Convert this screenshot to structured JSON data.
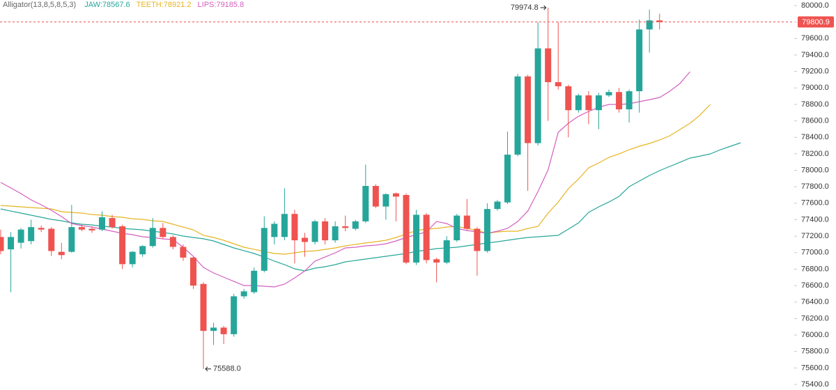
{
  "chart_data": {
    "type": "candlestick",
    "title": "Alligator(13,8,5,8,5,3)",
    "up_color": "#26a69a",
    "down_color": "#ef5350",
    "ohlc": {
      "open": [
        77190,
        77040,
        77120,
        77140,
        77300,
        77290,
        77010,
        77010,
        77310,
        77290,
        77280,
        77420,
        77320,
        76860,
        76980,
        77080,
        77300,
        77190,
        77070,
        76940,
        76620,
        76050,
        76090,
        76010,
        76470,
        76520,
        76780,
        77190,
        77190,
        77470,
        77180,
        77130,
        77380,
        77150,
        77320,
        77290,
        77380,
        77810,
        77560,
        77720,
        77700,
        76880,
        77460,
        76920,
        76880,
        77150,
        77450,
        77290,
        77020,
        77530,
        77610,
        78190,
        79140,
        78330,
        79480,
        79070,
        79020,
        78730,
        78910,
        78730,
        78910,
        78950,
        78740,
        78960,
        79710,
        79820
      ],
      "high": [
        77280,
        77250,
        77300,
        77400,
        77330,
        77310,
        77120,
        77580,
        77340,
        77320,
        77500,
        77460,
        77340,
        77020,
        77090,
        77420,
        77360,
        77210,
        77100,
        76950,
        76640,
        76150,
        76110,
        76500,
        76560,
        76820,
        77440,
        77380,
        77780,
        77520,
        77240,
        77400,
        77420,
        77380,
        77450,
        77400,
        78070,
        77830,
        77720,
        77730,
        77720,
        77520,
        77480,
        76940,
        77200,
        77470,
        77650,
        77310,
        77600,
        77640,
        78470,
        79170,
        79160,
        79800,
        79974.8,
        79800,
        79040,
        78930,
        78960,
        78940,
        78980,
        79000,
        78980,
        79830,
        79950,
        79900
      ],
      "low": [
        76980,
        76520,
        77050,
        77100,
        77250,
        76960,
        76920,
        77000,
        77260,
        77240,
        77260,
        77290,
        76800,
        76820,
        76950,
        77060,
        77170,
        77040,
        76900,
        76560,
        75588,
        75880,
        75890,
        75980,
        76440,
        76500,
        76760,
        77100,
        77150,
        76870,
        76950,
        77100,
        77100,
        77120,
        77260,
        77270,
        77360,
        77540,
        77400,
        77380,
        76860,
        76850,
        76870,
        76640,
        76860,
        77130,
        77270,
        76720,
        77000,
        77510,
        77590,
        78170,
        77750,
        78300,
        78600,
        78980,
        78400,
        78700,
        78560,
        78500,
        78890,
        78700,
        78580,
        78700,
        79430,
        79710
      ],
      "close": [
        77020,
        77190,
        77280,
        77310,
        77280,
        77020,
        76970,
        77310,
        77280,
        77270,
        77430,
        77310,
        76860,
        77010,
        77080,
        77300,
        77190,
        77070,
        76940,
        76600,
        76050,
        76090,
        76010,
        76470,
        76530,
        76780,
        77300,
        77350,
        77470,
        77150,
        77130,
        77380,
        77150,
        77320,
        77300,
        77380,
        77810,
        77560,
        77710,
        77680,
        76880,
        77460,
        76910,
        76880,
        77150,
        77450,
        77290,
        77020,
        77530,
        77620,
        78190,
        79140,
        78330,
        79480,
        79070,
        79020,
        78730,
        78910,
        78730,
        78910,
        78950,
        78740,
        78960,
        79710,
        79820,
        79800.9
      ]
    },
    "series": [
      {
        "name": "JAW:78567.6",
        "color": "#26a69a",
        "values": [
          77531,
          77505,
          77480,
          77455,
          77429,
          77404,
          77387,
          77362,
          77345,
          77336,
          77320,
          77311,
          77294,
          77286,
          77277,
          77260,
          77244,
          77227,
          77201,
          77184,
          77168,
          77142,
          77100,
          77057,
          77024,
          76990,
          76947,
          76897,
          76854,
          76804,
          76778,
          76812,
          76829,
          76854,
          76888,
          76905,
          76922,
          76939,
          76956,
          76973,
          76990,
          77015,
          77032,
          77049,
          77057,
          77066,
          77083,
          77100,
          77117,
          77133,
          77150,
          77168,
          77184,
          77193,
          77201,
          77210,
          77286,
          77362,
          77489,
          77556,
          77615,
          77683,
          77801,
          77869,
          77937,
          77996,
          78047,
          78097,
          78148,
          78173,
          78199,
          78250,
          78292,
          78334
        ]
      },
      {
        "name": "TEETH:78921.2",
        "color": "#e6b422",
        "values": [
          77573,
          77565,
          77556,
          77548,
          77539,
          77531,
          77497,
          77489,
          77480,
          77463,
          77455,
          77438,
          77429,
          77412,
          77404,
          77387,
          77379,
          77345,
          77311,
          77277,
          77210,
          77184,
          77150,
          77108,
          77066,
          77040,
          77015,
          76990,
          76981,
          76998,
          77015,
          77023,
          77040,
          77057,
          77083,
          77100,
          77117,
          77133,
          77150,
          77184,
          77226,
          77269,
          77286,
          77294,
          77311,
          77319,
          77294,
          77269,
          77235,
          77252,
          77260,
          77260,
          77294,
          77319,
          77480,
          77615,
          77776,
          77894,
          78030,
          78089,
          78157,
          78199,
          78250,
          78292,
          78326,
          78368,
          78419,
          78495,
          78571,
          78672,
          78799,
          null,
          null,
          null
        ]
      },
      {
        "name": "LIPS:79185.8",
        "color": "#d35fc0",
        "values": [
          77852,
          77785,
          77717,
          77641,
          77582,
          77514,
          77438,
          77353,
          77328,
          77311,
          77286,
          77260,
          77235,
          77218,
          77193,
          77184,
          77167,
          77159,
          77066,
          76956,
          76821,
          76753,
          76702,
          76651,
          76601,
          76601,
          76592,
          76584,
          76618,
          76694,
          76778,
          76897,
          76947,
          76998,
          77057,
          77066,
          77083,
          77091,
          77108,
          77142,
          77184,
          77218,
          77252,
          77379,
          77353,
          77294,
          77269,
          77252,
          77235,
          77260,
          77294,
          77379,
          77505,
          77742,
          78004,
          78461,
          78571,
          78656,
          78715,
          78765,
          78799,
          78799,
          78808,
          78833,
          78858,
          78884,
          78960,
          79053,
          79197,
          null,
          null,
          null,
          null,
          null
        ]
      }
    ],
    "annotations": [
      {
        "value": 79974.8,
        "label": "79974.8"
      },
      {
        "value": 75588,
        "label": "75588.0"
      }
    ],
    "current_price": {
      "value": 79800.9,
      "label": "79800.9"
    },
    "ylim": [
      75400,
      80000
    ],
    "yticks": [
      {
        "value": 75400,
        "label": "75400.0"
      },
      {
        "value": 75600,
        "label": "75600.0"
      },
      {
        "value": 75800,
        "label": "75800.0"
      },
      {
        "value": 76000,
        "label": "76000.0"
      },
      {
        "value": 76200,
        "label": "76200.0"
      },
      {
        "value": 76400,
        "label": "76400.0"
      },
      {
        "value": 76600,
        "label": "76600.0"
      },
      {
        "value": 76800,
        "label": "76800.0"
      },
      {
        "value": 77000,
        "label": "77000.0"
      },
      {
        "value": 77200,
        "label": "77200.0"
      },
      {
        "value": 77400,
        "label": "77400.0"
      },
      {
        "value": 77600,
        "label": "77600.0"
      },
      {
        "value": 77800,
        "label": "77800.0"
      },
      {
        "value": 78000,
        "label": "78000.0"
      },
      {
        "value": 78200,
        "label": "78200.0"
      },
      {
        "value": 78400,
        "label": "78400.0"
      },
      {
        "value": 78600,
        "label": "78600.0"
      },
      {
        "value": 78800,
        "label": "78800.0"
      },
      {
        "value": 79000,
        "label": "79000.0"
      },
      {
        "value": 79200,
        "label": "79200.0"
      },
      {
        "value": 79400,
        "label": "79400.0"
      },
      {
        "value": 79600,
        "label": "79600.0"
      },
      {
        "value": 79800,
        "label": "79800.0"
      },
      {
        "value": 80000,
        "label": "80000.0"
      }
    ],
    "grid": false
  }
}
